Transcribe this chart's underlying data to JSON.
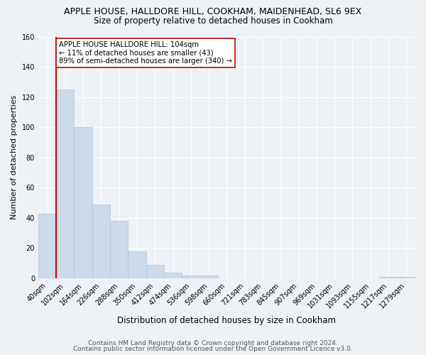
{
  "title1": "APPLE HOUSE, HALLDORE HILL, COOKHAM, MAIDENHEAD, SL6 9EX",
  "title2": "Size of property relative to detached houses in Cookham",
  "xlabel": "Distribution of detached houses by size in Cookham",
  "ylabel": "Number of detached properties",
  "categories": [
    "40sqm",
    "102sqm",
    "164sqm",
    "226sqm",
    "288sqm",
    "350sqm",
    "412sqm",
    "474sqm",
    "536sqm",
    "598sqm",
    "660sqm",
    "721sqm",
    "783sqm",
    "845sqm",
    "907sqm",
    "969sqm",
    "1031sqm",
    "1093sqm",
    "1155sqm",
    "1217sqm",
    "1279sqm"
  ],
  "values": [
    43,
    125,
    100,
    49,
    38,
    18,
    9,
    4,
    2,
    2,
    0,
    0,
    0,
    0,
    0,
    0,
    0,
    0,
    0,
    1,
    1
  ],
  "bar_color": "#ccdaea",
  "bar_edge_color": "#b0c4d8",
  "vline_x_index": 1,
  "vline_color": "#cc0000",
  "annotation_text": "APPLE HOUSE HALLDORE HILL: 104sqm\n← 11% of detached houses are smaller (43)\n89% of semi-detached houses are larger (340) →",
  "annotation_box_color": "#ffffff",
  "annotation_box_edge": "#cc0000",
  "ylim": [
    0,
    160
  ],
  "yticks": [
    0,
    20,
    40,
    60,
    80,
    100,
    120,
    140,
    160
  ],
  "footer1": "Contains HM Land Registry data © Crown copyright and database right 2024.",
  "footer2": "Contains public sector information licensed under the Open Government Licence v3.0.",
  "bg_color": "#eef2f7",
  "plot_bg_color": "#eef2f7",
  "grid_color": "#ffffff",
  "title1_fontsize": 9,
  "title2_fontsize": 8.5,
  "ylabel_fontsize": 8,
  "xlabel_fontsize": 8.5,
  "tick_fontsize": 7,
  "footer_fontsize": 6.5
}
